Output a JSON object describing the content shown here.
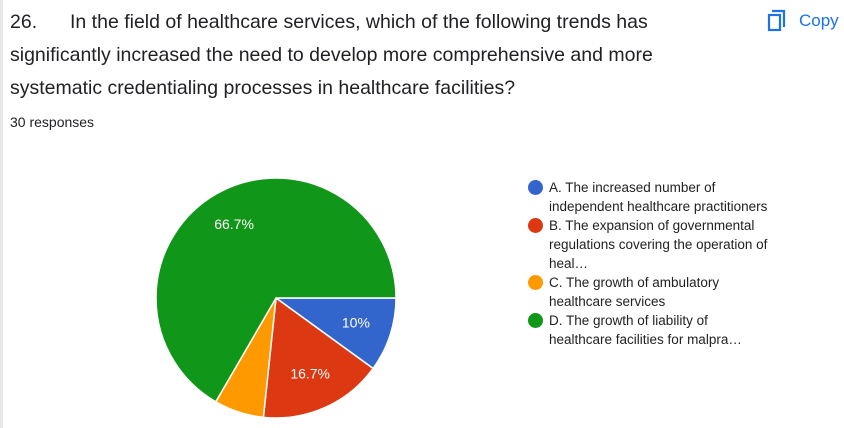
{
  "question": {
    "number": "26.",
    "text": "In the field of healthcare services, which of the following trends has significantly increased the need to develop more comprehensive and more systematic credentialing processes in healthcare facilities?"
  },
  "copy_button": "Copy",
  "responses": "30 responses",
  "chart_data": {
    "type": "pie",
    "categories": [
      "A. The increased number of independent healthcare practitioners",
      "B. The expansion of governmental regulations covering the operation of heal…",
      "C. The growth of ambulatory healthcare services",
      "D. The growth of liability of healthcare facilities for malpra…"
    ],
    "values": [
      10,
      16.7,
      6.7,
      66.7
    ],
    "value_labels": [
      "10%",
      "16.7%",
      null,
      "66.7%"
    ],
    "colors": [
      "#3366cc",
      "#dc3912",
      "#ff9900",
      "#109618"
    ],
    "legend": "right"
  }
}
